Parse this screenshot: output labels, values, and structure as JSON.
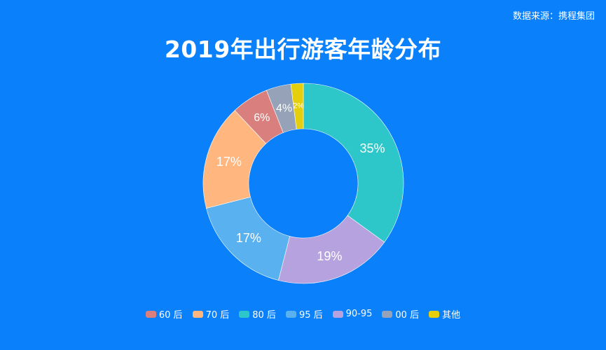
{
  "source": "数据来源：携程集团",
  "chart_data": {
    "type": "pie",
    "title": "2019年出行游客年龄分布",
    "slices": [
      {
        "name": "60 后",
        "value": 6,
        "label": "6%",
        "color": "#d9807f"
      },
      {
        "name": "70 后",
        "value": 17,
        "label": "17%",
        "color": "#ffb77f"
      },
      {
        "name": "80 后",
        "value": 35,
        "label": "35%",
        "color": "#2ec7c9"
      },
      {
        "name": "95 后",
        "value": 17,
        "label": "17%",
        "color": "#5ab1ef"
      },
      {
        "name": "90-95",
        "value": 19,
        "label": "19%",
        "color": "#b6a2de"
      },
      {
        "name": "00 后",
        "value": 4,
        "label": "4%",
        "color": "#95a2b7"
      },
      {
        "name": "其他",
        "value": 2,
        "label": "2%",
        "color": "#e5cf0d"
      }
    ],
    "drawing_order": [
      "80 后",
      "90-95",
      "95 后",
      "70 后",
      "60 后",
      "00 后",
      "其他"
    ],
    "legend_position": "bottom"
  }
}
